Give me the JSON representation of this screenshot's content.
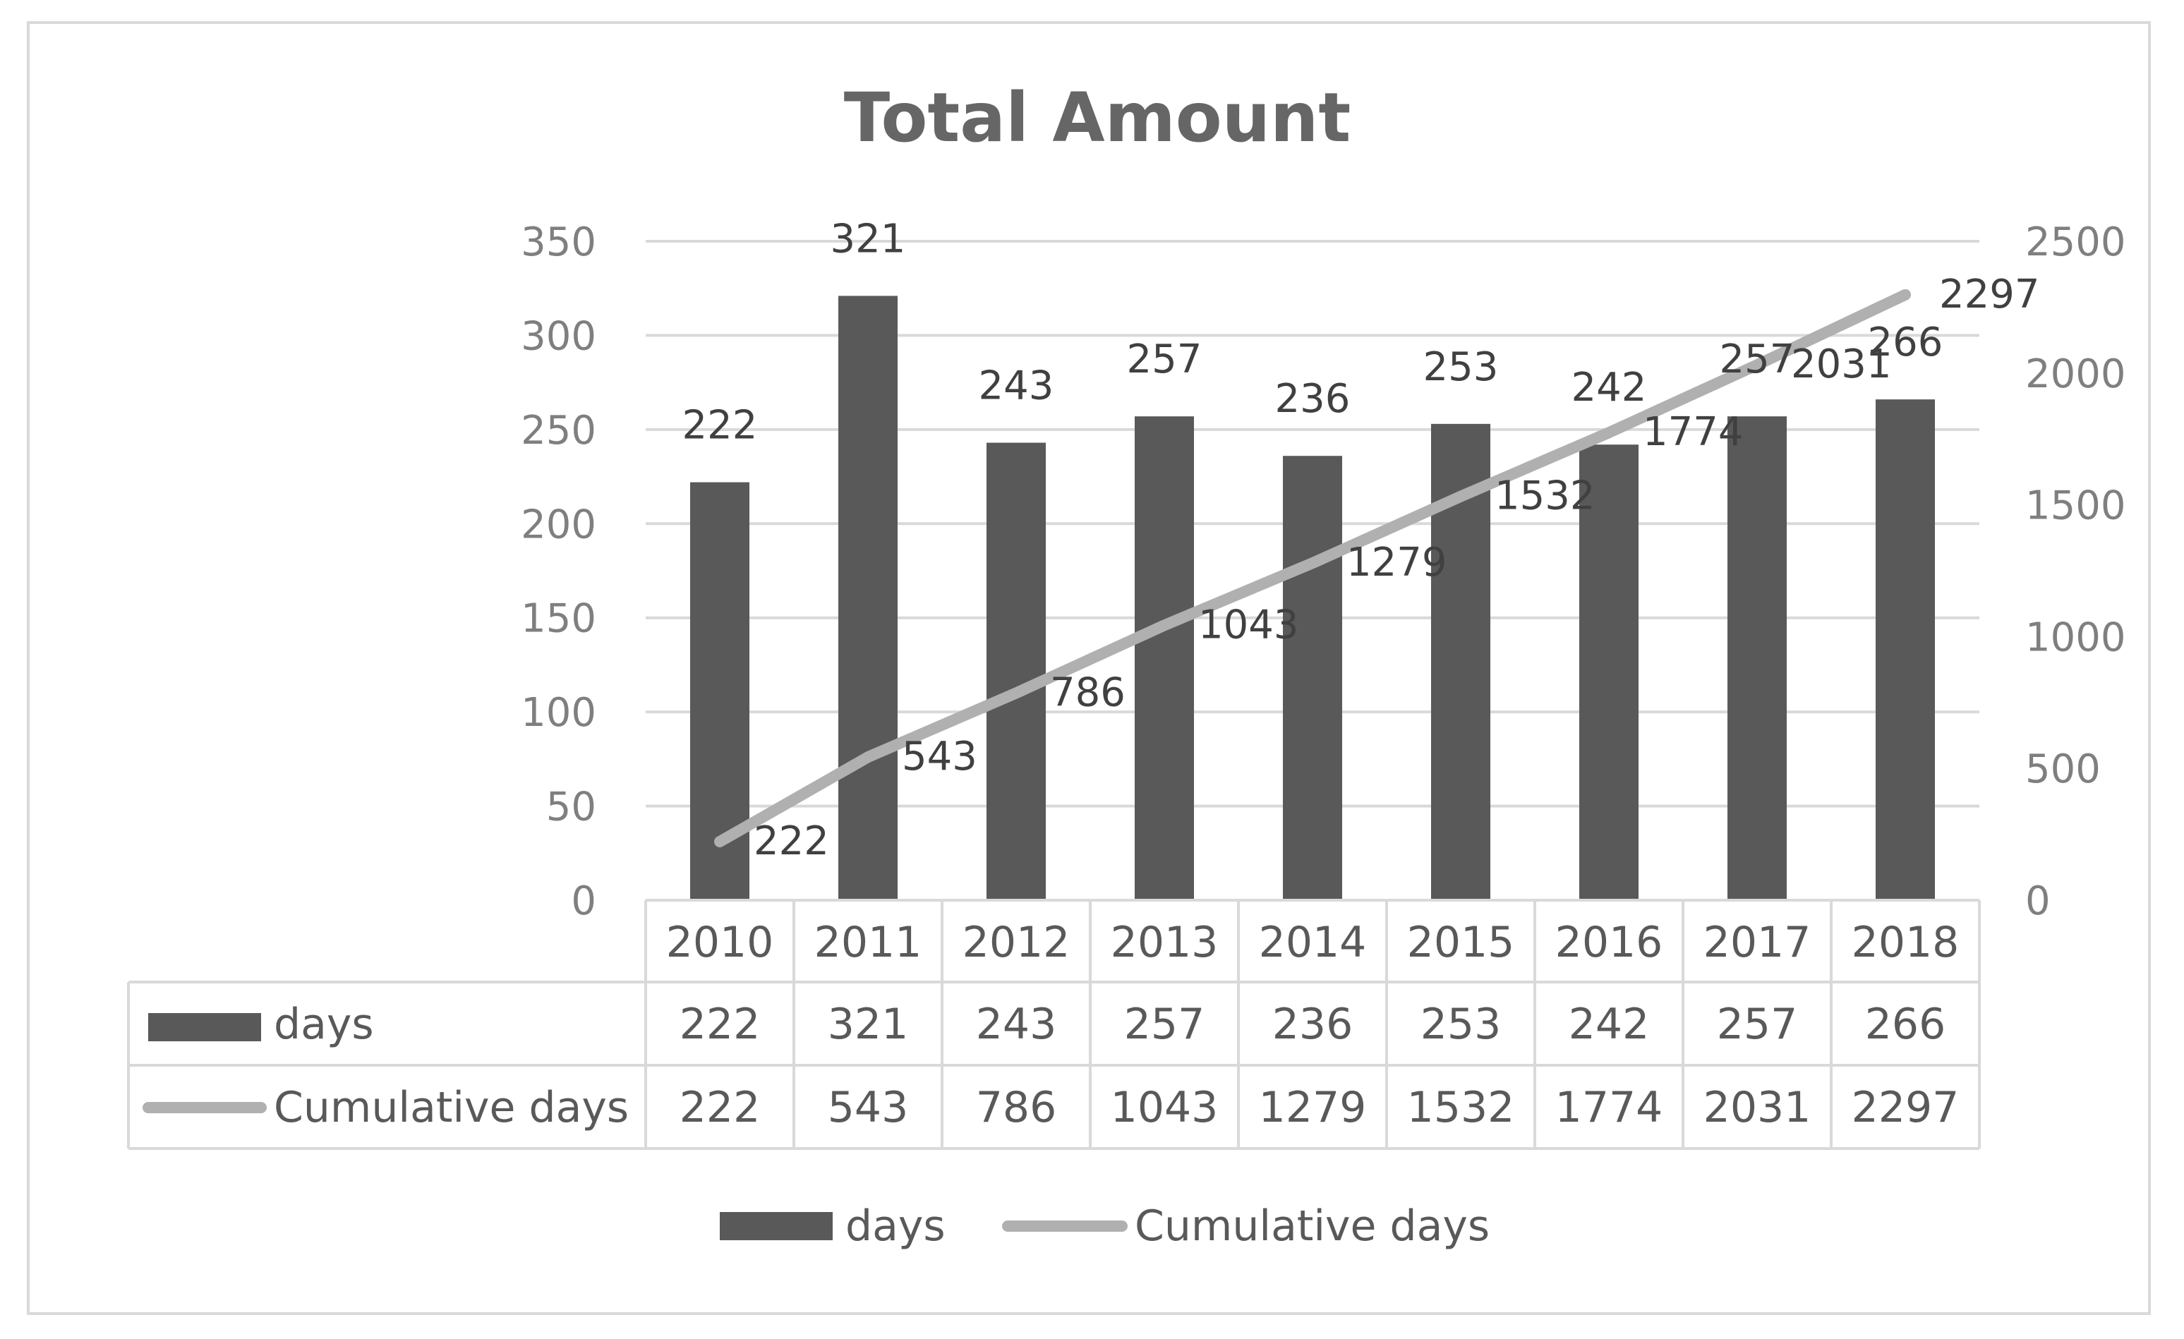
{
  "chart_data": {
    "type": "bar",
    "title": "Total Amount",
    "categories": [
      "2010",
      "2011",
      "2012",
      "2013",
      "2014",
      "2015",
      "2016",
      "2017",
      "2018"
    ],
    "series": [
      {
        "name": "days",
        "type": "bar",
        "axis": "left",
        "color": "#595959",
        "values": [
          222,
          321,
          243,
          257,
          236,
          253,
          242,
          257,
          266
        ]
      },
      {
        "name": "Cumulative days",
        "type": "line",
        "axis": "right",
        "color": "#b0b0b0",
        "values": [
          222,
          543,
          786,
          1043,
          1279,
          1532,
          1774,
          2031,
          2297
        ]
      }
    ],
    "y_left": {
      "min": 0,
      "max": 350,
      "ticks": [
        0,
        50,
        100,
        150,
        200,
        250,
        300,
        350
      ]
    },
    "y_right": {
      "min": 0,
      "max": 2500,
      "ticks": [
        0,
        500,
        1000,
        1500,
        2000,
        2500
      ]
    },
    "grid": true,
    "legend_position": "bottom",
    "data_table": true
  }
}
